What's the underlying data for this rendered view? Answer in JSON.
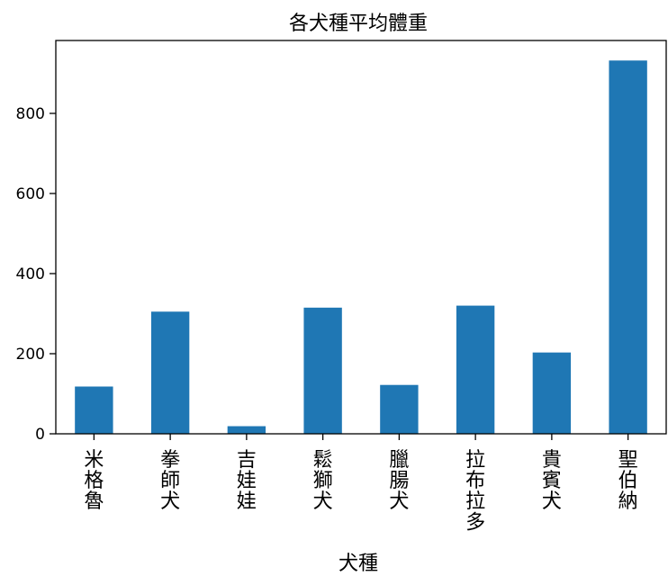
{
  "chart_data": {
    "type": "bar",
    "title": "各犬種平均體重",
    "xlabel": "犬種",
    "ylabel": "",
    "categories": [
      "米格魯",
      "拳師犬",
      "吉娃娃",
      "鬆獅犬",
      "臘腸犬",
      "拉布拉多",
      "貴賓犬",
      "聖伯納"
    ],
    "values": [
      118,
      305,
      19,
      315,
      122,
      320,
      203,
      932
    ],
    "ylim": [
      0,
      982
    ],
    "yticks": [
      0,
      200,
      400,
      600,
      800
    ],
    "grid": false,
    "bar_color": "#1f77b4"
  }
}
